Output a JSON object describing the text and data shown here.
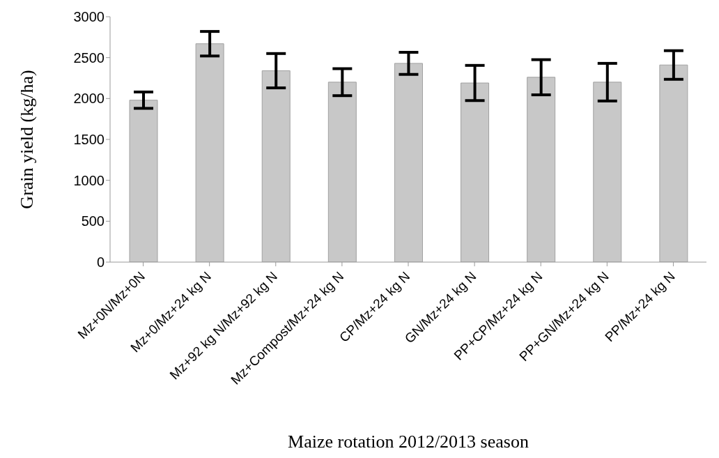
{
  "chart_data": {
    "type": "bar",
    "xlabel": "Maize rotation 2012/2013  season",
    "ylabel": "Grain yield (kg/ha)",
    "categories": [
      "Mz+0N/Mz+0N",
      "Mz+0/Mz+24 kg N",
      "Mz+92 kg N/Mz+92 kg N",
      "Mz+Compost/Mz+24 kg N",
      "CP/Mz+24 kg N",
      "GN/Mz+24 kg N",
      "PP+CP/Mz+24 kg N",
      "PP+GN/Mz+24 kg N",
      "PP/Mz+24 kg N"
    ],
    "values": [
      1980,
      2670,
      2340,
      2200,
      2430,
      2190,
      2260,
      2200,
      2410
    ],
    "errors": [
      100,
      150,
      210,
      165,
      135,
      215,
      215,
      230,
      175
    ],
    "color": "#c8c8c8",
    "ylim": [
      0,
      3000
    ],
    "yticks": [
      0,
      500,
      1000,
      1500,
      2000,
      2500,
      3000
    ],
    "grid": false,
    "legend": false
  }
}
